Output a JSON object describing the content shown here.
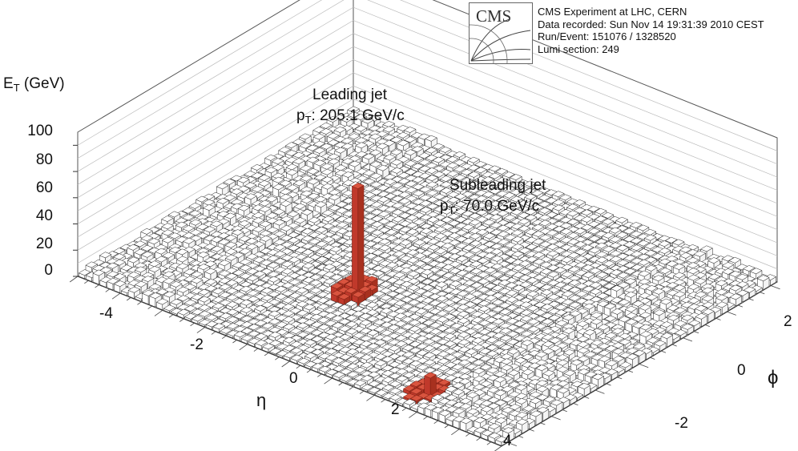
{
  "experiment": {
    "logo_text": "CMS",
    "info_lines": [
      "CMS Experiment at LHC, CERN",
      "Data recorded: Sun Nov 14 19:31:39 2010 CEST",
      "Run/Event: 151076 / 1328520",
      "Lumi section: 249"
    ]
  },
  "colors": {
    "jet_tower": "#c0392b",
    "background_tower": "#ffffff",
    "grid": "#bbbbbb"
  },
  "chart_data": {
    "type": "lego",
    "zlabel": {
      "main": "E",
      "sub": "T",
      "rest": " (GeV)"
    },
    "xlabel": "η",
    "ylabel": "ϕ",
    "zticks": [
      "0",
      "20",
      "40",
      "60",
      "80",
      "100"
    ],
    "xticks": [
      "-4",
      "-2",
      "0",
      "2",
      "4"
    ],
    "yticks": [
      "2",
      "0",
      "-2"
    ],
    "zlim": [
      0,
      110
    ],
    "xlim": [
      -5,
      5
    ],
    "ylim": [
      -3.14,
      3.14
    ],
    "annotations": [
      {
        "title": "Leading jet",
        "pt_main": "p",
        "pt_sub": "T",
        "pt_value": ": 205.1 GeV/c"
      },
      {
        "title": "Subleading jet",
        "pt_main": "p",
        "pt_sub": "T",
        "pt_value": ": 70.0 GeV/c"
      }
    ],
    "jets": [
      {
        "name": "leading",
        "eta": -0.65,
        "phi": 1.0,
        "peak_et": 84
      },
      {
        "name": "subleading",
        "eta": 2.7,
        "phi": 2.6,
        "peak_et": 14
      }
    ]
  }
}
